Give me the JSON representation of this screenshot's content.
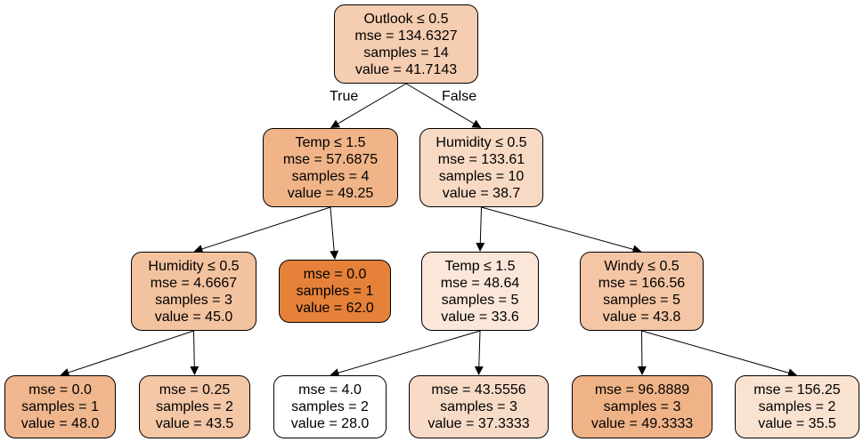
{
  "tree": {
    "nodes": [
      {
        "id": "n0",
        "lines": [
          "Outlook ≤ 0.5",
          "mse = 134.6327",
          "samples = 14",
          "value = 41.7143"
        ],
        "value": 41.7143,
        "color": "#f5cdb0"
      },
      {
        "id": "n1",
        "lines": [
          "Temp ≤ 1.5",
          "mse = 57.6875",
          "samples = 4",
          "value = 49.25"
        ],
        "value": 49.25,
        "color": "#f0b488"
      },
      {
        "id": "n2",
        "lines": [
          "Humidity ≤ 0.5",
          "mse = 4.6667",
          "samples = 3",
          "value = 45.0"
        ],
        "value": 45.0,
        "color": "#f3c29f"
      },
      {
        "id": "n3",
        "lines": [
          "mse = 0.0",
          "samples = 1",
          "value = 48.0"
        ],
        "value": 48.0,
        "color": "#f0b78e"
      },
      {
        "id": "n4",
        "lines": [
          "mse = 0.25",
          "samples = 2",
          "value = 43.5"
        ],
        "value": 43.5,
        "color": "#f4c7a7"
      },
      {
        "id": "n5",
        "lines": [
          "mse = 0.0",
          "samples = 1",
          "value = 62.0"
        ],
        "value": 62.0,
        "color": "#e58139"
      },
      {
        "id": "n6",
        "lines": [
          "Humidity ≤ 0.5",
          "mse = 133.61",
          "samples = 10",
          "value = 38.7"
        ],
        "value": 38.7,
        "color": "#f8dac4"
      },
      {
        "id": "n7",
        "lines": [
          "Temp ≤ 1.5",
          "mse = 48.64",
          "samples = 5",
          "value = 33.6"
        ],
        "value": 33.6,
        "color": "#fbe7d9"
      },
      {
        "id": "n8",
        "lines": [
          "mse = 4.0",
          "samples = 2",
          "value = 28.0"
        ],
        "value": 28.0,
        "color": "#ffffff"
      },
      {
        "id": "n9",
        "lines": [
          "mse = 43.5556",
          "samples = 3",
          "value = 37.3333"
        ],
        "value": 37.3333,
        "color": "#f8dbc7"
      },
      {
        "id": "n10",
        "lines": [
          "Windy ≤ 0.5",
          "mse = 166.56",
          "samples = 5",
          "value = 43.8"
        ],
        "value": 43.8,
        "color": "#f4c6a5"
      },
      {
        "id": "n11",
        "lines": [
          "mse = 96.8889",
          "samples = 3",
          "value = 49.3333"
        ],
        "value": 49.3333,
        "color": "#f0b387"
      },
      {
        "id": "n12",
        "lines": [
          "mse = 156.25",
          "samples = 2",
          "value = 35.5"
        ],
        "value": 35.5,
        "color": "#fae2d1"
      }
    ],
    "edges": [
      {
        "from": "n0",
        "to": "n1",
        "label": "True"
      },
      {
        "from": "n0",
        "to": "n6",
        "label": "False"
      },
      {
        "from": "n1",
        "to": "n2",
        "label": ""
      },
      {
        "from": "n1",
        "to": "n5",
        "label": ""
      },
      {
        "from": "n2",
        "to": "n3",
        "label": ""
      },
      {
        "from": "n2",
        "to": "n4",
        "label": ""
      },
      {
        "from": "n6",
        "to": "n7",
        "label": ""
      },
      {
        "from": "n6",
        "to": "n10",
        "label": ""
      },
      {
        "from": "n7",
        "to": "n8",
        "label": ""
      },
      {
        "from": "n7",
        "to": "n9",
        "label": ""
      },
      {
        "from": "n10",
        "to": "n11",
        "label": ""
      },
      {
        "from": "n10",
        "to": "n12",
        "label": ""
      }
    ]
  }
}
